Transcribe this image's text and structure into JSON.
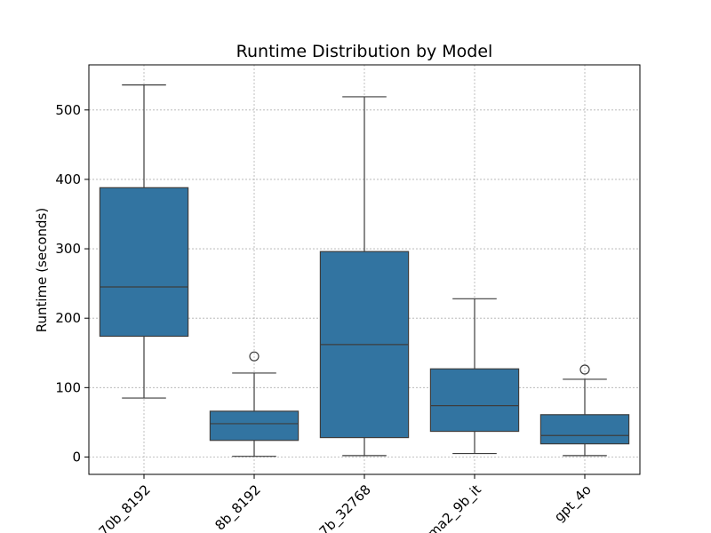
{
  "chart_data": {
    "type": "box",
    "title": "Runtime Distribution by Model",
    "xlabel": "",
    "ylabel": "Runtime (seconds)",
    "ylim": [
      -25,
      565
    ],
    "yticks": [
      0,
      100,
      200,
      300,
      400,
      500
    ],
    "ytick_labels": [
      "0",
      "100",
      "200",
      "300",
      "400",
      "500"
    ],
    "grid": true,
    "box_color": "#3274a1",
    "categories": [
      "70b_8192",
      "8b_8192",
      "7b_32768",
      "ma2_9b_it",
      "gpt_4o"
    ],
    "boxes": [
      {
        "category": "70b_8192",
        "whisker_low": 85,
        "q1": 174,
        "median": 245,
        "q3": 388,
        "whisker_high": 536,
        "outliers": []
      },
      {
        "category": "8b_8192",
        "whisker_low": 1,
        "q1": 24,
        "median": 48,
        "q3": 66,
        "whisker_high": 121,
        "outliers": [
          145
        ]
      },
      {
        "category": "7b_32768",
        "whisker_low": 2,
        "q1": 28,
        "median": 162,
        "q3": 296,
        "whisker_high": 519,
        "outliers": []
      },
      {
        "category": "ma2_9b_it",
        "whisker_low": 5,
        "q1": 37,
        "median": 74,
        "q3": 127,
        "whisker_high": 228,
        "outliers": []
      },
      {
        "category": "gpt_4o",
        "whisker_low": 2,
        "q1": 19,
        "median": 31,
        "q3": 61,
        "whisker_high": 112,
        "outliers": [
          126
        ]
      }
    ]
  }
}
